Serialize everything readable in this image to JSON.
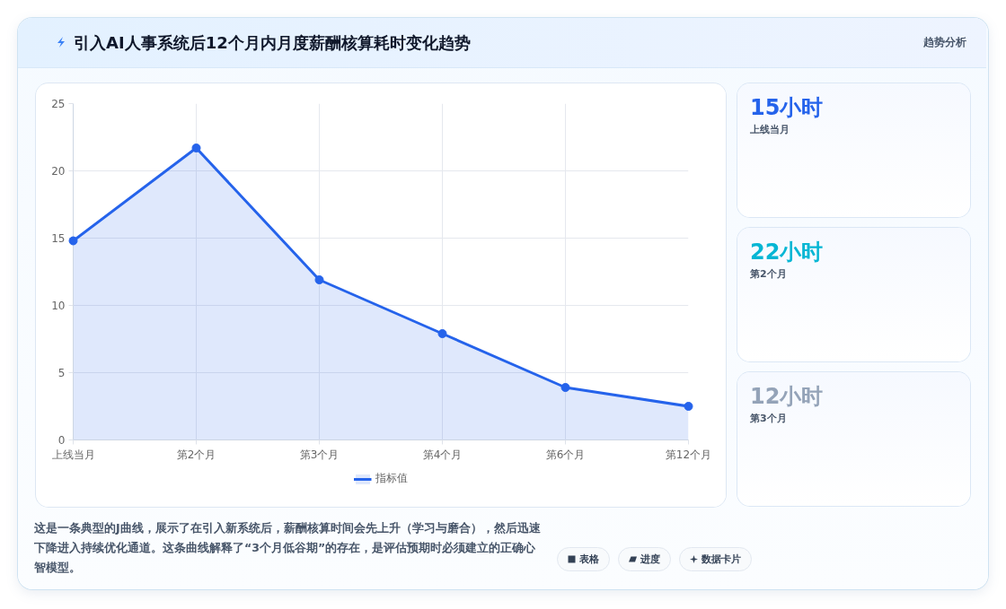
{
  "chart_data": {
    "type": "area",
    "title": "引入AI人事系统后12个月内月度薪酬核算耗时变化趋势",
    "categories": [
      "上线当月",
      "第2个月",
      "第3个月",
      "第4个月",
      "第6个月",
      "第12个月"
    ],
    "series": [
      {
        "name": "指标值",
        "color": "#2563eb",
        "values": [
          14.8,
          21.7,
          11.9,
          7.9,
          3.9,
          2.5
        ]
      }
    ],
    "ylim": [
      0,
      25
    ],
    "yticks": [
      0,
      5,
      10,
      15,
      20,
      25
    ],
    "grid": true,
    "legend": "bottom",
    "marker": "circle",
    "line_style": "solid",
    "annotations": [
      "趋势分析",
      "15小时",
      "上线当月",
      "22小时",
      "第2个月",
      "12小时",
      "第3个月",
      "这是一条典型的J曲线，展示了在引入新系统后，薪酬核算时间会先上升（学习与磨合），然后迅速下降进入持续优化通道。这条曲线解释了“3个月低谷期”的存在，是评估预期时必须建立的正确心智模型。",
      "表格",
      "进度",
      "数据卡片"
    ]
  }
}
